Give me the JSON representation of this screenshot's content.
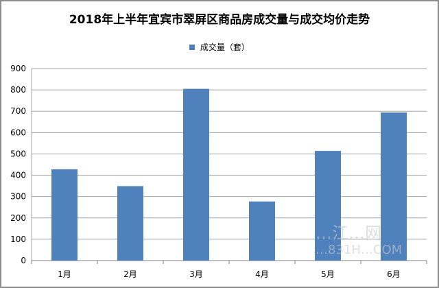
{
  "chart_data": {
    "type": "bar",
    "title": "2018年上半年宜宾市翠屏区商品房成交量与成交均价走势",
    "categories": [
      "1月",
      "2月",
      "3月",
      "4月",
      "5月",
      "6月"
    ],
    "series": [
      {
        "name": "成交量（套）",
        "values": [
          428,
          349,
          805,
          277,
          514,
          694
        ],
        "color": "#4f81bd"
      }
    ],
    "ylim": [
      0,
      900
    ],
    "yticks": [
      0,
      100,
      200,
      300,
      400,
      500,
      600,
      700,
      800,
      900
    ],
    "grid": true,
    "legend_position": "top-center"
  },
  "watermark": {
    "line1": "…江…网",
    "line2": "…831H…COM"
  }
}
